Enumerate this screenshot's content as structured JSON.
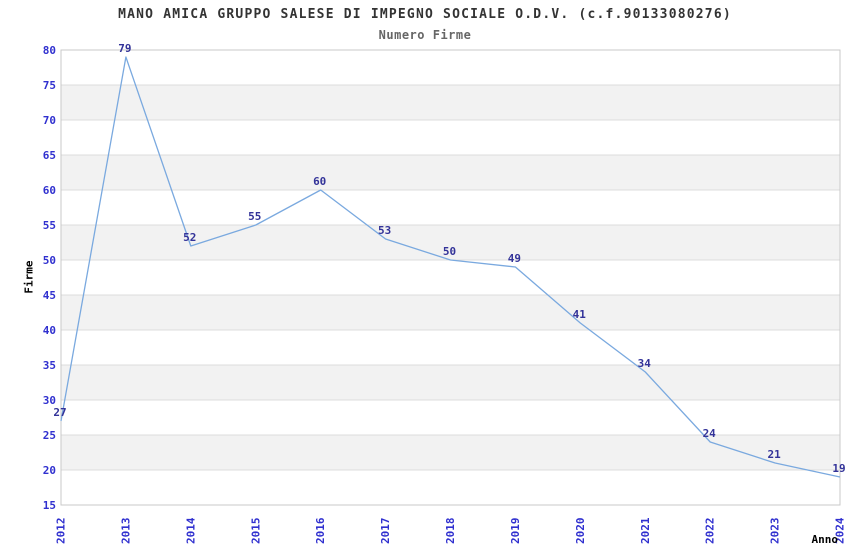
{
  "chart_data": {
    "type": "line",
    "title": "MANO AMICA GRUPPO SALESE DI IMPEGNO SOCIALE O.D.V. (c.f.90133080276)",
    "subtitle": "Numero Firme",
    "xlabel": "Anno",
    "ylabel": "Firme",
    "categories": [
      "2012",
      "2013",
      "2014",
      "2015",
      "2016",
      "2017",
      "2018",
      "2019",
      "2020",
      "2021",
      "2022",
      "2023",
      "2024"
    ],
    "values": [
      27,
      79,
      52,
      55,
      60,
      53,
      50,
      49,
      41,
      34,
      24,
      21,
      19
    ],
    "y_ticks": [
      15,
      20,
      25,
      30,
      35,
      40,
      45,
      50,
      55,
      60,
      65,
      70,
      75,
      80
    ],
    "ylim": [
      15,
      80
    ],
    "ytick_step": 5,
    "grid": "horizontal-bands-alternating",
    "legend": "none",
    "data_labels": "shown-above-points",
    "colors": {
      "line": "#7AA9DF",
      "tick_label": "#3030CF",
      "value_label": "#333399",
      "band": "#F2F2F2",
      "grid": "#DCDCDC",
      "border": "#C9C9C9",
      "title": "#333333",
      "subtitle": "#666666",
      "axis_label": "#000000",
      "background": "#FFFFFF"
    }
  }
}
